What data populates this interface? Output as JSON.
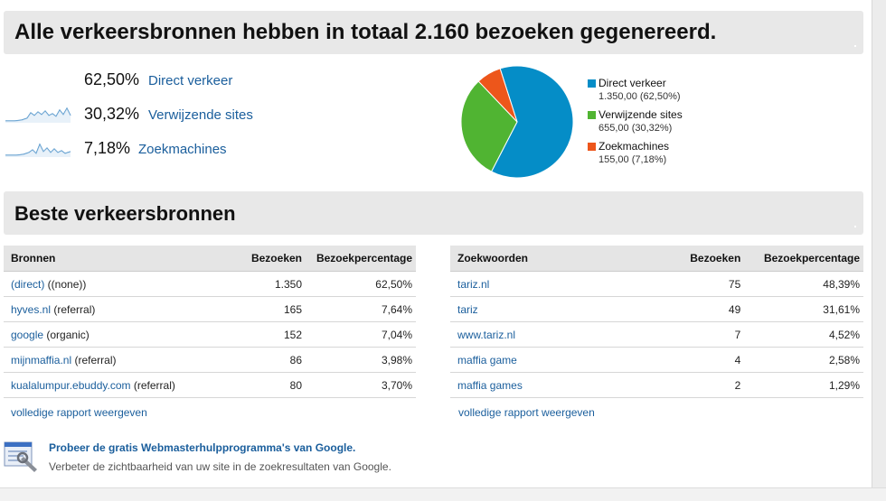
{
  "summary": {
    "title": "Alle verkeersbronnen hebben in totaal 2.160 bezoeken gegenereerd.",
    "sources": [
      {
        "pct": "62,50%",
        "label": "Direct verkeer",
        "sparkline": false
      },
      {
        "pct": "30,32%",
        "label": "Verwijzende sites",
        "sparkline": true
      },
      {
        "pct": "7,18%",
        "label": "Zoekmachines",
        "sparkline": true
      }
    ]
  },
  "chart_data": {
    "type": "pie",
    "slices": [
      {
        "name": "Direct verkeer",
        "value": 1350,
        "value_label": "1.350,00 (62,50%)",
        "color": "#058dc7"
      },
      {
        "name": "Verwijzende sites",
        "value": 655,
        "value_label": "655,00 (30,32%)",
        "color": "#50b432"
      },
      {
        "name": "Zoekmachines",
        "value": 155,
        "value_label": "155,00 (7,18%)",
        "color": "#ed561b"
      }
    ],
    "legend": "right"
  },
  "best": {
    "title": "Beste verkeersbronnen"
  },
  "sources_table": {
    "headers": [
      "Bronnen",
      "Bezoeken",
      "Bezoekpercentage"
    ],
    "rows": [
      {
        "link": "(direct)",
        "suffix": " ((none))",
        "visits": "1.350",
        "pct": "62,50%"
      },
      {
        "link": "hyves.nl",
        "suffix": " (referral)",
        "visits": "165",
        "pct": "7,64%"
      },
      {
        "link": "google",
        "suffix": " (organic)",
        "visits": "152",
        "pct": "7,04%"
      },
      {
        "link": "mijnmaffia.nl",
        "suffix": " (referral)",
        "visits": "86",
        "pct": "3,98%"
      },
      {
        "link": "kualalumpur.ebuddy.com",
        "suffix": " (referral)",
        "visits": "80",
        "pct": "3,70%"
      }
    ],
    "full_report": "volledige rapport weergeven"
  },
  "keywords_table": {
    "headers": [
      "Zoekwoorden",
      "Bezoeken",
      "Bezoekpercentage"
    ],
    "rows": [
      {
        "link": "tariz.nl",
        "visits": "75",
        "pct": "48,39%"
      },
      {
        "link": "tariz",
        "visits": "49",
        "pct": "31,61%"
      },
      {
        "link": "www.tariz.nl",
        "visits": "7",
        "pct": "4,52%"
      },
      {
        "link": "maffia game",
        "visits": "4",
        "pct": "2,58%"
      },
      {
        "link": "maffia games",
        "visits": "2",
        "pct": "1,29%"
      }
    ],
    "full_report": "volledige rapport weergeven"
  },
  "promo": {
    "title": "Probeer de gratis Webmasterhulpprogramma's van Google.",
    "description": "Verbeter de zichtbaarheid van uw site in de zoekresultaten van Google."
  },
  "colors": {
    "link": "#1a5e9c",
    "sparkline": "#4a90c8"
  }
}
